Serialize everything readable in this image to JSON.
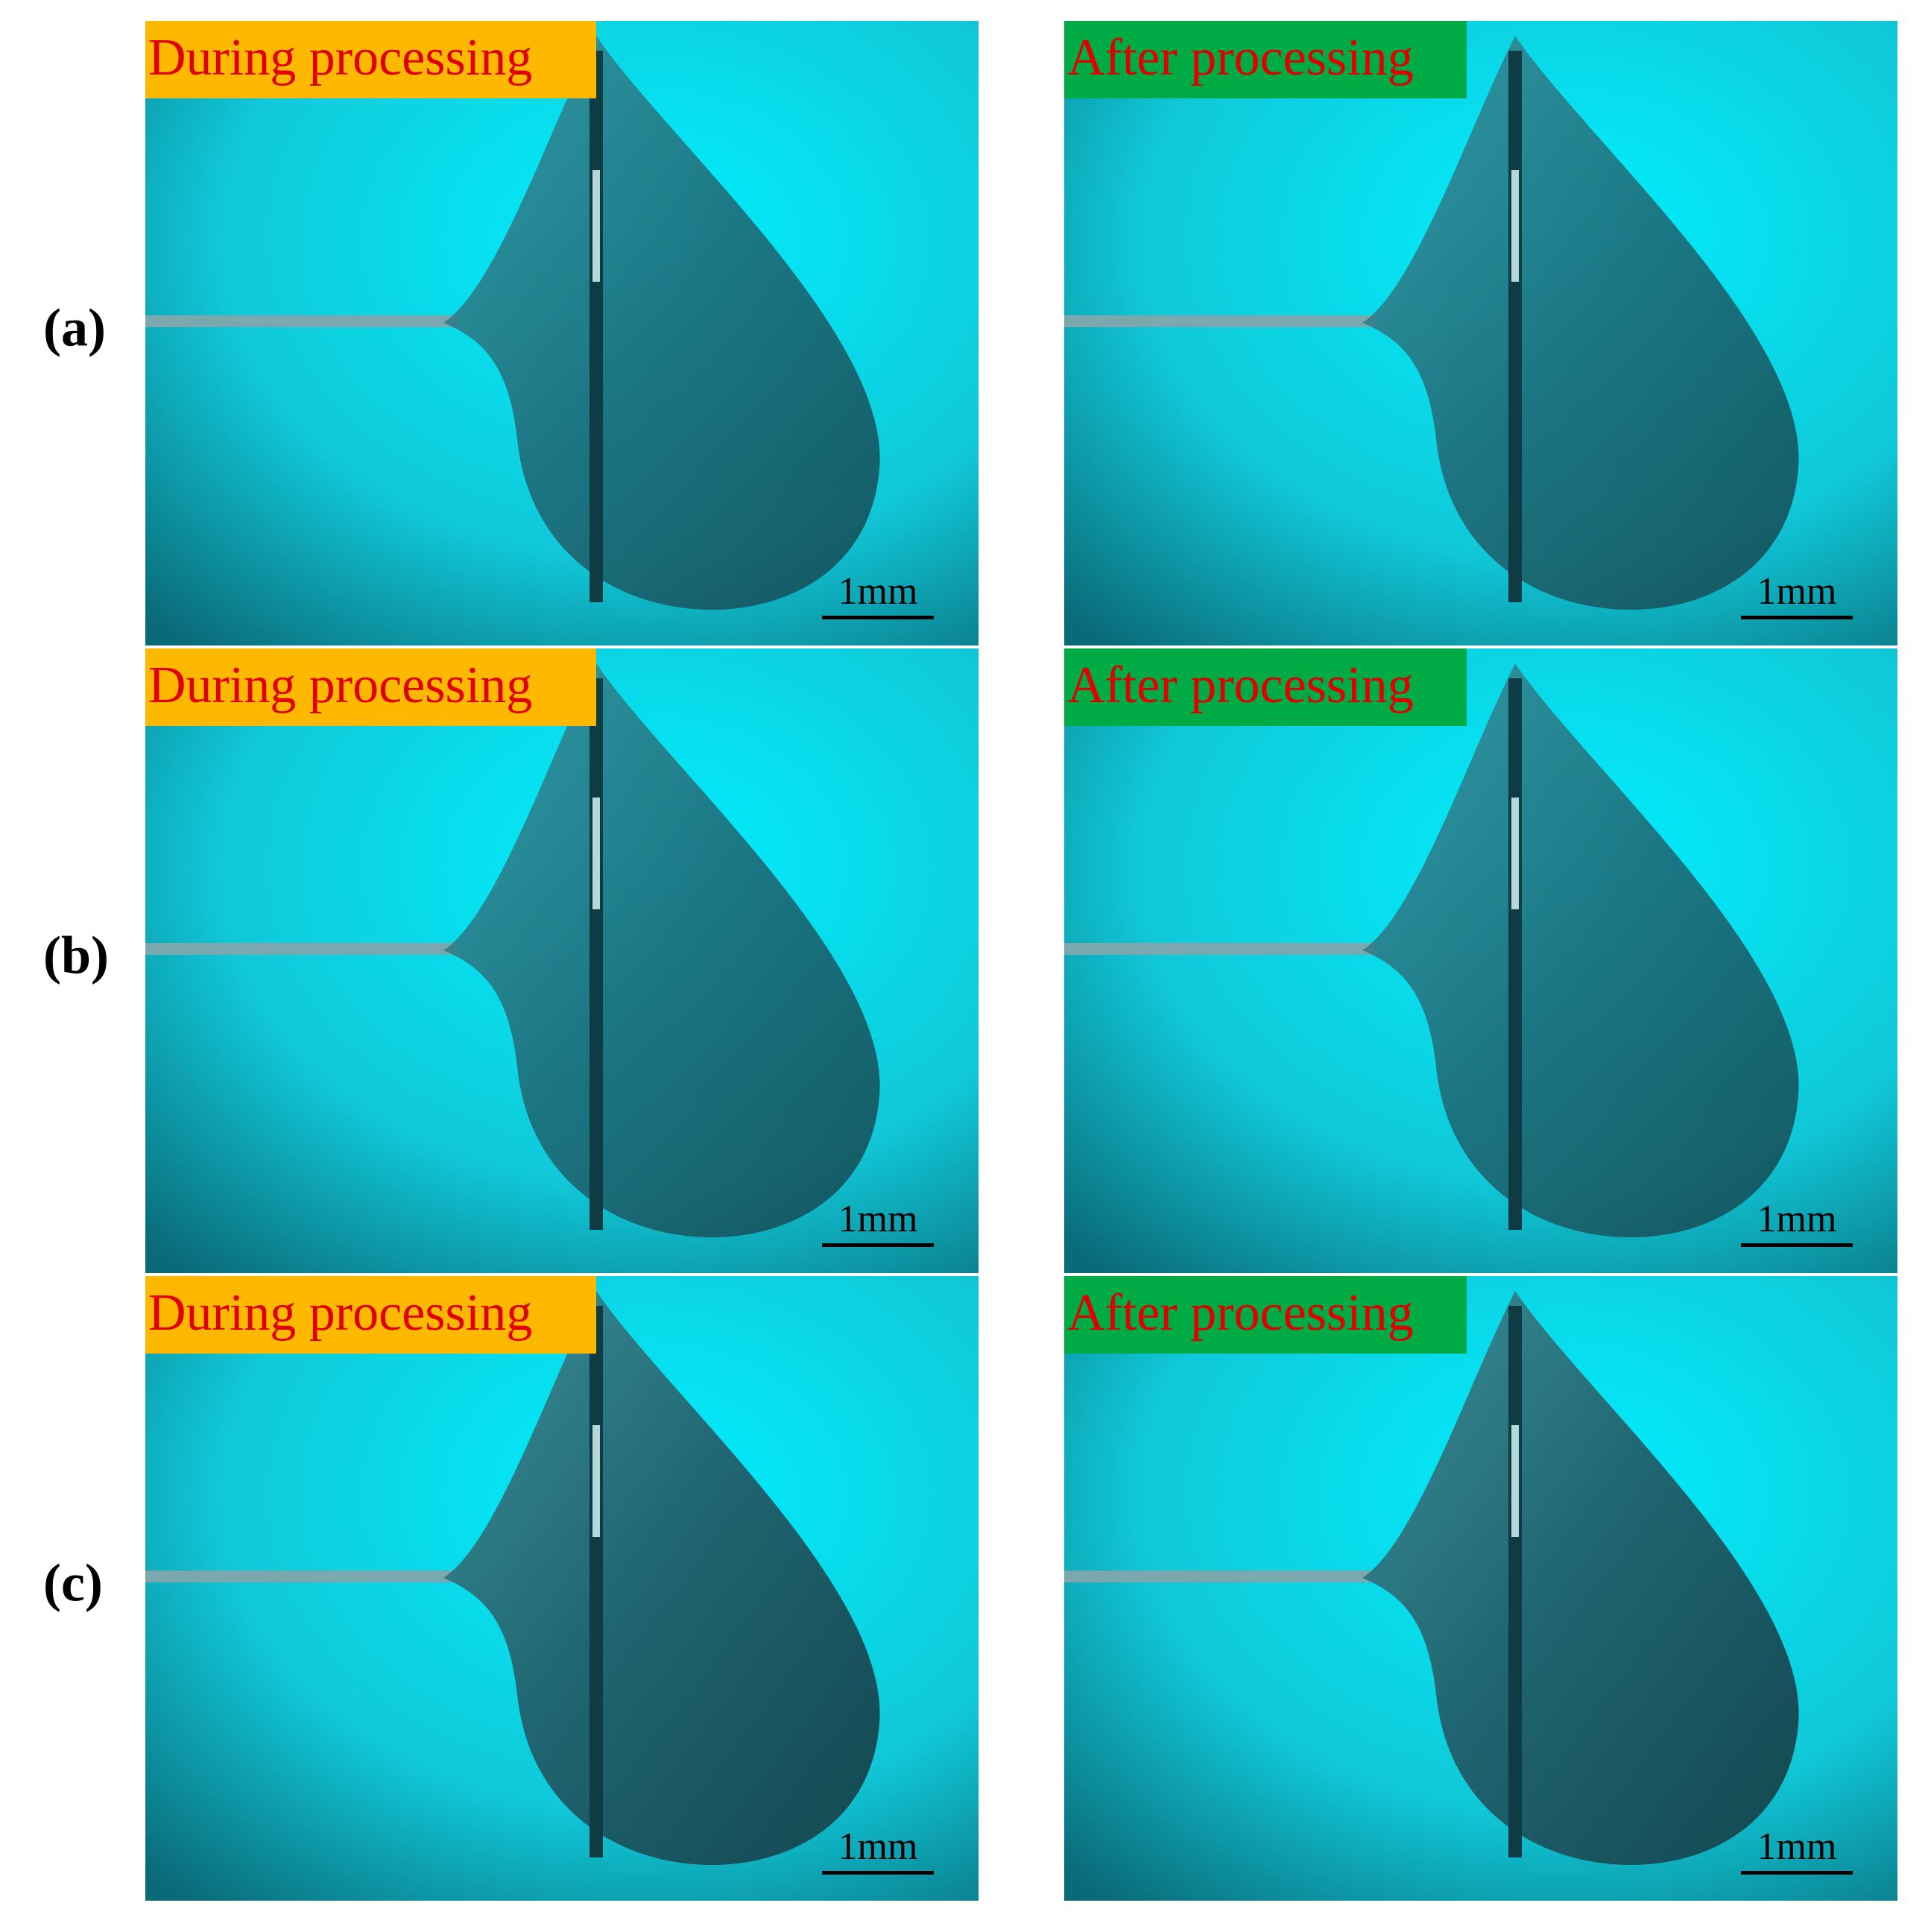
{
  "rows": [
    {
      "label": "(a)",
      "panels": [
        {
          "caption": "During processing",
          "scale": "1mm"
        },
        {
          "caption": "After processing",
          "scale": "1mm"
        }
      ]
    },
    {
      "label": "(b)",
      "panels": [
        {
          "caption": "During processing",
          "scale": "1mm"
        },
        {
          "caption": "After processing",
          "scale": "1mm"
        }
      ]
    },
    {
      "label": "(c)",
      "panels": [
        {
          "caption": "During processing",
          "scale": "1mm"
        },
        {
          "caption": "After processing",
          "scale": "1mm"
        }
      ]
    }
  ]
}
